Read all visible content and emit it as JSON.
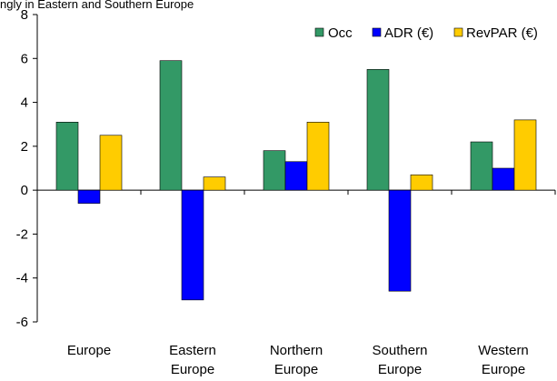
{
  "chart_data": {
    "type": "bar",
    "top_note": "ngly in Eastern and Southern Europe",
    "categories": [
      [
        "Europe"
      ],
      [
        "Eastern",
        "Europe"
      ],
      [
        "Northern",
        "Europe"
      ],
      [
        "Southern",
        "Europe"
      ],
      [
        "Western",
        "Europe"
      ]
    ],
    "series": [
      {
        "name": "Occ",
        "color": "#339966",
        "values": [
          3.1,
          5.9,
          1.8,
          5.5,
          2.2
        ]
      },
      {
        "name": "ADR (€)",
        "color": "#0000FF",
        "values": [
          -0.6,
          -5.0,
          1.3,
          -4.6,
          1.0
        ]
      },
      {
        "name": "RevPAR (€)",
        "color": "#FFCC00",
        "values": [
          2.5,
          0.6,
          3.1,
          0.7,
          3.2
        ]
      }
    ],
    "ylim": [
      -6,
      8
    ],
    "yticks": [
      "-6",
      "-4",
      "-2",
      "0",
      "2",
      "4",
      "6",
      "8"
    ],
    "grid": false,
    "legend": "top-right",
    "xlabel": "",
    "ylabel": ""
  }
}
